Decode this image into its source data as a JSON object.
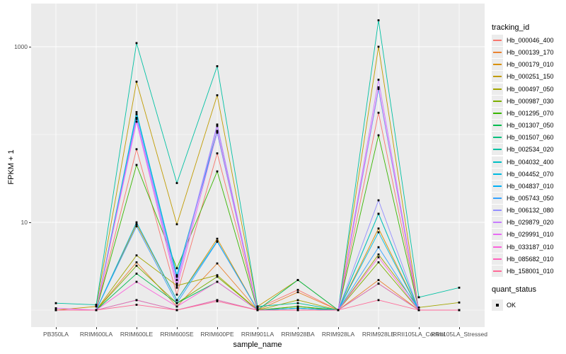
{
  "figure": {
    "panel_bg": "#EBEBEB",
    "grid_color": "#FFFFFF",
    "tick_label_color": "#4D4D4D",
    "point_color": "#000000",
    "legend_key_bg": "#ECECEC"
  },
  "y_axis": {
    "title": "FPKM + 1",
    "scale": "log10",
    "tick_labels": [
      "10",
      "1000"
    ]
  },
  "x_axis": {
    "title": "sample_name"
  },
  "legend": {
    "tracking": {
      "title": "tracking_id"
    },
    "quant": {
      "title": "quant_status",
      "items": [
        {
          "label": "OK",
          "marker": "black-square"
        }
      ]
    }
  },
  "chart_data": {
    "type": "line",
    "title": "",
    "xlabel": "sample_name",
    "ylabel": "FPKM + 1",
    "y_scale": "log10",
    "ylim": [
      0.9,
      2800
    ],
    "y_ticks": [
      10,
      1000
    ],
    "y_minor_gridlines": [
      1,
      100
    ],
    "grid": true,
    "legend_position": "right",
    "marker": {
      "shape": "square",
      "color": "#000000",
      "meaning": "quant_status OK"
    },
    "categories": [
      "PB350LA",
      "RRIM600LA",
      "RRIM600LE",
      "RRIM600SE",
      "RRIM600PE",
      "RRIM901LA",
      "RRIM928BA",
      "RRIM928LA",
      "RRIM928LE",
      "RRII105LA_Control",
      "RRII105LA_Stressed"
    ],
    "series": [
      {
        "name": "Hb_000046_400",
        "color": "#F8766D",
        "values": [
          1,
          1,
          68,
          1.5,
          61,
          1.05,
          1.7,
          1,
          177,
          1,
          1
        ]
      },
      {
        "name": "Hb_000139_170",
        "color": "#EA8331",
        "values": [
          1,
          1,
          3.5,
          1.1,
          3.4,
          1,
          1.6,
          1,
          2.2,
          1,
          1
        ]
      },
      {
        "name": "Hb_000179_010",
        "color": "#D89000",
        "values": [
          1,
          1,
          9.5,
          1.3,
          6.5,
          1,
          1.1,
          1,
          8.5,
          1,
          1
        ]
      },
      {
        "name": "Hb_000251_150",
        "color": "#C09B00",
        "values": [
          1,
          1.1,
          400,
          9.5,
          280,
          1.1,
          2.2,
          1,
          1000,
          1,
          1
        ]
      },
      {
        "name": "Hb_000497_050",
        "color": "#A3A500",
        "values": [
          1,
          1,
          4.2,
          1.9,
          2.5,
          1,
          1.3,
          1,
          4.3,
          1.07,
          1.22
        ]
      },
      {
        "name": "Hb_000987_030",
        "color": "#7CAE00",
        "values": [
          1,
          1,
          3.2,
          1.2,
          2.4,
          1,
          1.05,
          1,
          3.5,
          1,
          1
        ]
      },
      {
        "name": "Hb_001295_070",
        "color": "#39B600",
        "values": [
          1,
          1,
          45,
          3,
          38,
          1,
          1.1,
          1,
          98,
          1,
          1
        ]
      },
      {
        "name": "Hb_001307_050",
        "color": "#00BB4E",
        "values": [
          1,
          1,
          2.6,
          1.2,
          2.1,
          1,
          2.2,
          1,
          2,
          1,
          1
        ]
      },
      {
        "name": "Hb_001507_060",
        "color": "#00BF7D",
        "values": [
          1,
          1,
          1.3,
          1,
          1.3,
          1,
          1.05,
          1,
          12.5,
          1,
          1
        ]
      },
      {
        "name": "Hb_002534_020",
        "color": "#00C1A3",
        "values": [
          1.2,
          1.15,
          1100,
          28,
          600,
          1.1,
          1.2,
          1,
          2000,
          1.4,
          1.8
        ]
      },
      {
        "name": "Hb_004032_400",
        "color": "#00BFC4",
        "values": [
          1,
          1,
          180,
          2.5,
          110,
          1,
          1,
          1,
          12.5,
          1,
          1
        ]
      },
      {
        "name": "Hb_004452_070",
        "color": "#00BAE0",
        "values": [
          1,
          1,
          10,
          1.3,
          6.1,
          1,
          1,
          1,
          7.7,
          1,
          1
        ]
      },
      {
        "name": "Hb_004837_010",
        "color": "#00B0F6",
        "values": [
          1,
          1,
          170,
          2.4,
          105,
          1,
          1.05,
          1,
          330,
          1,
          1
        ]
      },
      {
        "name": "Hb_005743_050",
        "color": "#35A2FF",
        "values": [
          1,
          1,
          9,
          1.2,
          6,
          1,
          1,
          1,
          5.2,
          1,
          1
        ]
      },
      {
        "name": "Hb_006132_080",
        "color": "#9590FF",
        "values": [
          1,
          1,
          155,
          2.2,
          130,
          1,
          1,
          1,
          17.8,
          1,
          1
        ]
      },
      {
        "name": "Hb_029879_020",
        "color": "#C77CFF",
        "values": [
          1,
          1,
          150,
          2,
          125,
          1,
          1,
          1,
          420,
          1,
          1
        ]
      },
      {
        "name": "Hb_029991_010",
        "color": "#E76BF3",
        "values": [
          1.05,
          1,
          140,
          1.8,
          108,
          1,
          1,
          1,
          345,
          1,
          1
        ]
      },
      {
        "name": "Hb_033187_010",
        "color": "#FA62DB",
        "values": [
          1,
          1,
          2.1,
          1.1,
          2.1,
          1,
          1,
          1,
          4,
          1,
          1
        ]
      },
      {
        "name": "Hb_085682_010",
        "color": "#FF62BC",
        "values": [
          1,
          1,
          1.3,
          1,
          1.3,
          1,
          1,
          1,
          2,
          1,
          1
        ]
      },
      {
        "name": "Hb_158001_010",
        "color": "#FF6A98",
        "values": [
          1,
          1,
          1.15,
          1,
          1.26,
          1,
          1,
          1,
          1.3,
          1,
          1
        ]
      }
    ]
  }
}
